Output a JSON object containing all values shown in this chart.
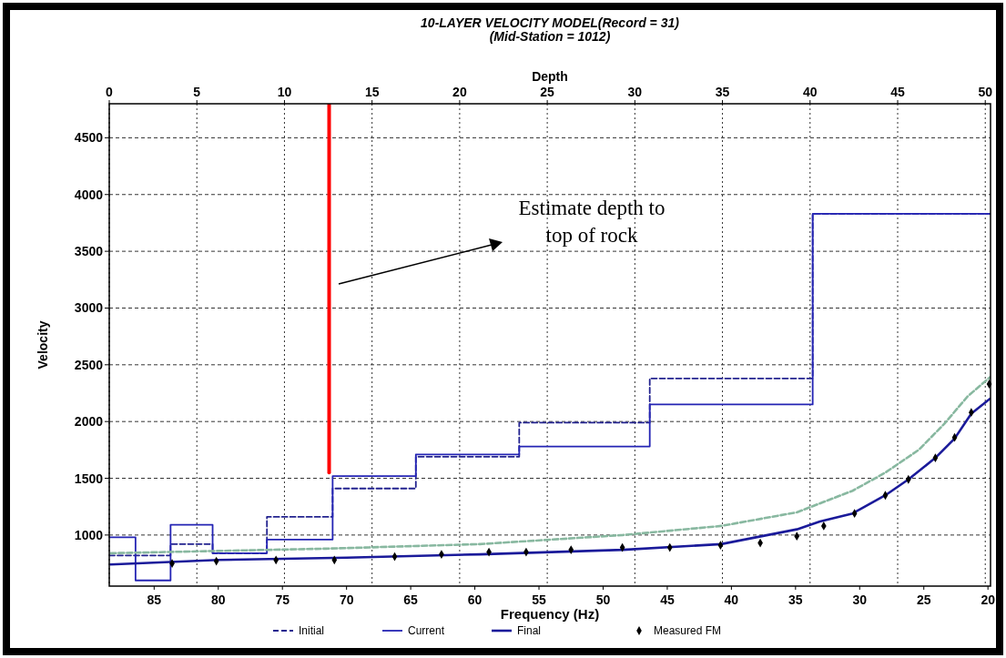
{
  "chart_data": {
    "type": "line",
    "title": "10-LAYER VELOCITY MODEL(Record = 31)",
    "subtitle": "(Mid-Station = 1012)",
    "xlabel": "Frequency (Hz)",
    "x2label": "Depth",
    "ylabel": "Velocity",
    "xlim": [
      88.5,
      19.8
    ],
    "xticks": [
      85,
      80,
      75,
      70,
      65,
      60,
      55,
      50,
      45,
      40,
      35,
      30,
      25,
      20
    ],
    "x2lim": [
      0,
      50.3
    ],
    "x2ticks": [
      0,
      5,
      10,
      15,
      20,
      25,
      30,
      35,
      40,
      45,
      50
    ],
    "ylim": [
      550,
      4800
    ],
    "yticks": [
      1000,
      1500,
      2000,
      2500,
      3000,
      3500,
      4000,
      4500
    ],
    "grid": true,
    "legend": "bottom",
    "annotations": [
      "Estimate depth to\ntop of rock"
    ],
    "series": [
      {
        "name": "Initial",
        "type": "step",
        "axis": "x2",
        "color": "#23238f",
        "line_style": "dashed",
        "x": [
          0,
          1.5,
          3.5,
          5.9,
          9.0,
          12.75,
          17.5,
          23.4,
          30.85,
          40.15,
          50.3
        ],
        "values": [
          820,
          820,
          920,
          840,
          1160,
          1410,
          1690,
          1990,
          2380,
          3830,
          3830
        ]
      },
      {
        "name": "Current",
        "type": "step",
        "axis": "x2",
        "color": "#2424b4",
        "line_style": "solid",
        "x": [
          0,
          1.5,
          3.5,
          5.9,
          9.0,
          12.75,
          17.5,
          23.4,
          30.85,
          40.15,
          50.3
        ],
        "values": [
          980,
          600,
          1090,
          840,
          960,
          1520,
          1710,
          1780,
          2150,
          3830,
          3830
        ]
      },
      {
        "color": "#88b8a0",
        "line_style": "dashed",
        "x": [
          88.4,
          71.6,
          59.6,
          48.45,
          40.8,
          34.9,
          30.55,
          28,
          25.4,
          23.4,
          21.6,
          19.85
        ],
        "values": [
          840,
          880,
          920,
          1000,
          1080,
          1200,
          1390,
          1550,
          1750,
          1980,
          2220,
          2390
        ]
      },
      {
        "name": "Final",
        "color": "#1a1a9a",
        "line_style": "solid",
        "x": [
          88.4,
          80,
          70,
          59.6,
          48.45,
          40.8,
          34.9,
          33.1,
          30.55,
          28,
          26.2,
          24.1,
          22.6,
          21.3,
          19.85
        ],
        "values": [
          740,
          780,
          800,
          830,
          870,
          920,
          1050,
          1120,
          1190,
          1350,
          1490,
          1680,
          1850,
          2070,
          2200
        ]
      },
      {
        "name": "Measured FM",
        "type": "scatter",
        "marker": "diamond",
        "color": "#000000",
        "x": [
          83.6,
          80.15,
          75.5,
          70.95,
          66.25,
          62.6,
          58.9,
          56,
          52.5,
          48.5,
          44.8,
          40.85,
          37.75,
          34.9,
          32.8,
          30.4,
          28,
          26.2,
          24.1,
          22.6,
          21.3,
          19.9
        ],
        "values": [
          750,
          770,
          780,
          780,
          810,
          830,
          850,
          850,
          870,
          890,
          890,
          910,
          930,
          990,
          1080,
          1190,
          1350,
          1490,
          1680,
          1860,
          2080,
          2330
        ]
      },
      {
        "axis": "x2",
        "color": "#ff0000",
        "line_style": "solid",
        "x": [
          12.55,
          12.55
        ],
        "values": [
          1550,
          4800
        ]
      }
    ]
  }
}
